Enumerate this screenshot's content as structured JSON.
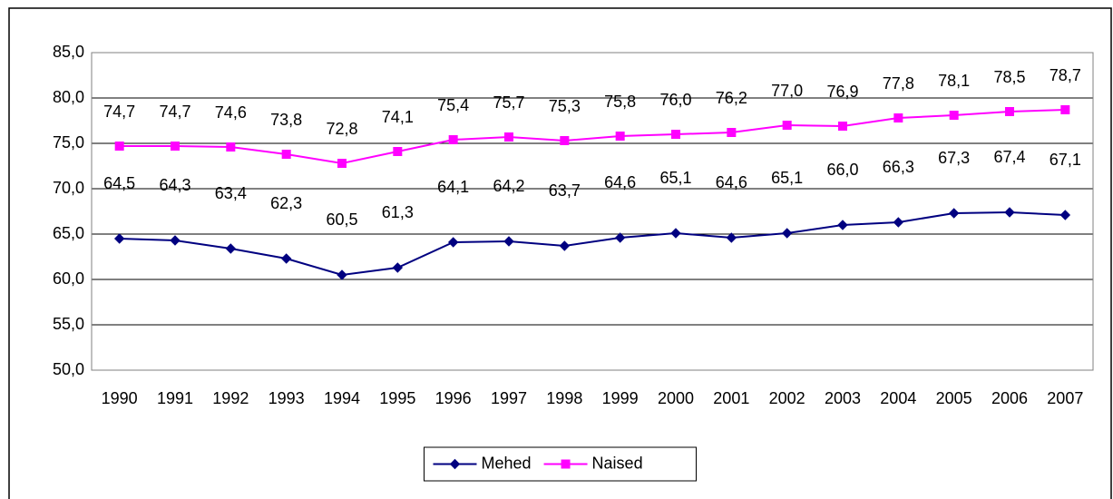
{
  "chart_data": {
    "type": "line",
    "categories": [
      "1990",
      "1991",
      "1992",
      "1993",
      "1994",
      "1995",
      "1996",
      "1997",
      "1998",
      "1999",
      "2000",
      "2001",
      "2002",
      "2003",
      "2004",
      "2005",
      "2006",
      "2007"
    ],
    "series": [
      {
        "name": "Mehed",
        "color": "#000080",
        "marker": "diamond",
        "values": [
          64.5,
          64.3,
          63.4,
          62.3,
          60.5,
          61.3,
          64.1,
          64.2,
          63.7,
          64.6,
          65.1,
          64.6,
          65.1,
          66.0,
          66.3,
          67.3,
          67.4,
          67.1
        ],
        "value_labels": [
          "64,5",
          "64,3",
          "63,4",
          "62,3",
          "60,5",
          "61,3",
          "64,1",
          "64,2",
          "63,7",
          "64,6",
          "65,1",
          "64,6",
          "65,1",
          "66,0",
          "66,3",
          "67,3",
          "67,4",
          "67,1"
        ]
      },
      {
        "name": "Naised",
        "color": "#ff00ff",
        "marker": "square",
        "values": [
          74.7,
          74.7,
          74.6,
          73.8,
          72.8,
          74.1,
          75.4,
          75.7,
          75.3,
          75.8,
          76.0,
          76.2,
          77.0,
          76.9,
          77.8,
          78.1,
          78.5,
          78.7
        ],
        "value_labels": [
          "74,7",
          "74,7",
          "74,6",
          "73,8",
          "72,8",
          "74,1",
          "75,4",
          "75,7",
          "75,3",
          "75,8",
          "76,0",
          "76,2",
          "77,0",
          "76,9",
          "77,8",
          "78,1",
          "78,5",
          "78,7"
        ]
      }
    ],
    "ylim": [
      50,
      85
    ],
    "yticks": [
      {
        "value": 50,
        "label": "50,0"
      },
      {
        "value": 55,
        "label": "55,0"
      },
      {
        "value": 60,
        "label": "60,0"
      },
      {
        "value": 65,
        "label": "65,0"
      },
      {
        "value": 70,
        "label": "70,0"
      },
      {
        "value": 75,
        "label": "75,0"
      },
      {
        "value": 80,
        "label": "80,0"
      },
      {
        "value": 85,
        "label": "85,0"
      }
    ],
    "grid": true,
    "legend": "bottom"
  }
}
